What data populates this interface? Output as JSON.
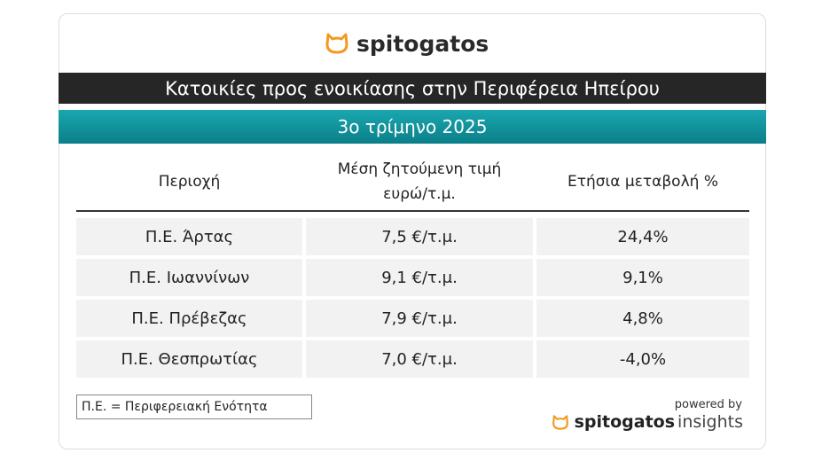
{
  "header": {
    "logo": "spitogatos",
    "title": "Κατοικίες προς ενοικίασης στην Περιφέρεια Ηπείρου",
    "subtitle": "3ο τρίμηνο 2025"
  },
  "table": {
    "columns": [
      [
        "Περιοχή"
      ],
      [
        "Μέση ζητούμενη τιμή",
        "ευρώ/τ.μ."
      ],
      [
        "Ετήσια μεταβολή %"
      ]
    ],
    "rows": [
      [
        "Π.Ε. Άρτας",
        "7,5 €/τ.μ.",
        "24,4%"
      ],
      [
        "Π.Ε. Ιωαννίνων",
        "9,1 €/τ.μ.",
        "9,1%"
      ],
      [
        "Π.Ε. Πρέβεζας",
        "7,9 €/τ.μ.",
        "4,8%"
      ],
      [
        "Π.Ε. Θεσπρωτίας",
        "7,0 €/τ.μ.",
        "-4,0%"
      ]
    ]
  },
  "footer": {
    "note": "Π.Ε. = Περιφερειακή Ενότητα",
    "powered_by": "powered by",
    "brand": "spitogatos",
    "brand_suffix": "insights"
  }
}
